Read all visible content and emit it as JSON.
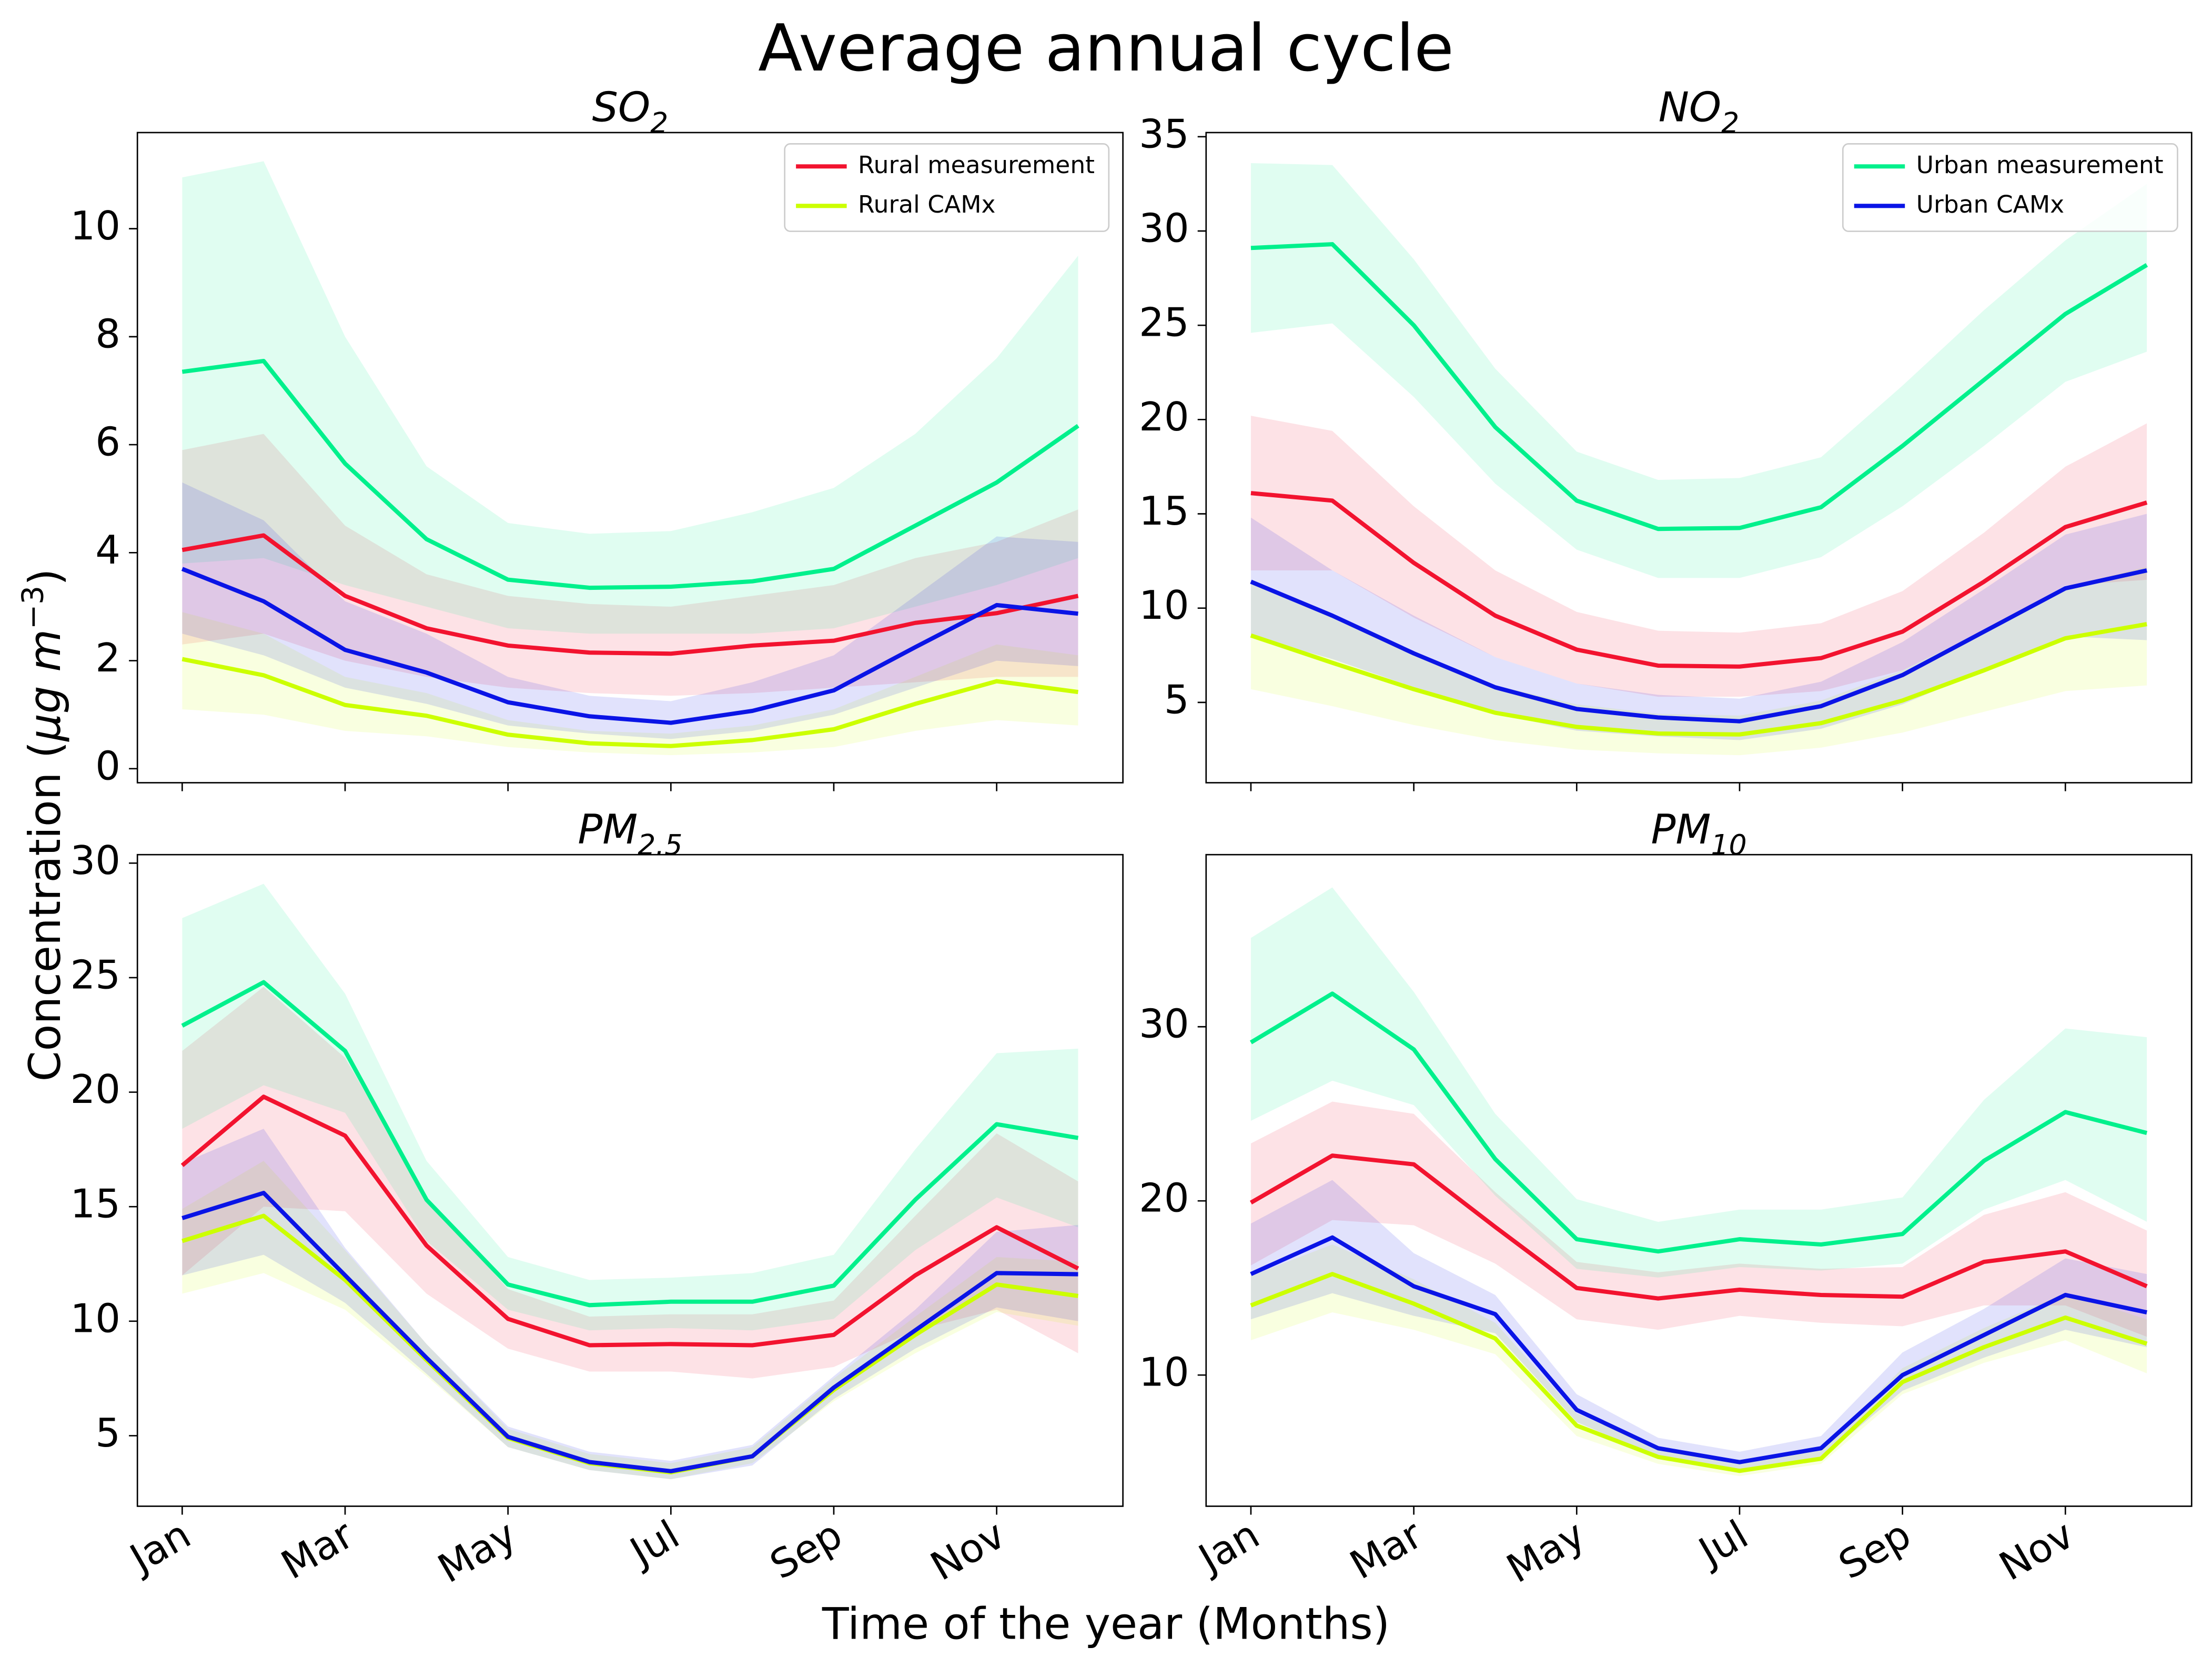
{
  "title": "Average annual cycle",
  "xlabel": "Time of the year (Months)",
  "ylabel": [
    "Concentration (",
    "μg m",
    "−3",
    ")"
  ],
  "categories": [
    "Jan",
    null,
    "Mar",
    null,
    "May",
    null,
    "Jul",
    null,
    "Sep",
    null,
    "Nov",
    null
  ],
  "chart_data": [
    {
      "type": "line",
      "title": [
        "SO",
        "2"
      ],
      "xticklabels": false,
      "legend_loc": "upper right",
      "ylim": [
        -0.26,
        11.78
      ],
      "yticks": [
        0,
        2,
        4,
        6,
        8,
        10
      ],
      "series": [
        {
          "name": "Rural measurement",
          "color": "#f2132f",
          "values": [
            4.05,
            4.32,
            3.2,
            2.6,
            2.28,
            2.15,
            2.13,
            2.28,
            2.37,
            2.7,
            2.88,
            3.2
          ],
          "upper": [
            5.9,
            6.2,
            4.5,
            3.6,
            3.2,
            3.05,
            3.0,
            3.2,
            3.4,
            3.9,
            4.2,
            4.8
          ],
          "lower": [
            2.3,
            2.5,
            2.0,
            1.7,
            1.5,
            1.4,
            1.35,
            1.4,
            1.5,
            1.6,
            1.7,
            1.7
          ]
        },
        {
          "name": "Rural CAMx",
          "color": "#ccff00",
          "values": [
            2.03,
            1.73,
            1.18,
            0.98,
            0.63,
            0.47,
            0.42,
            0.53,
            0.73,
            1.2,
            1.62,
            1.42
          ],
          "upper": [
            2.9,
            2.5,
            1.7,
            1.4,
            0.9,
            0.7,
            0.65,
            0.8,
            1.1,
            1.7,
            2.3,
            2.1
          ],
          "lower": [
            1.1,
            1.0,
            0.7,
            0.6,
            0.4,
            0.3,
            0.25,
            0.3,
            0.4,
            0.7,
            0.9,
            0.8
          ]
        },
        {
          "color": "#00f08c",
          "values": [
            7.35,
            7.55,
            5.65,
            4.25,
            3.5,
            3.35,
            3.37,
            3.47,
            3.7,
            4.5,
            5.3,
            6.35
          ],
          "upper": [
            10.95,
            11.25,
            8.0,
            5.6,
            4.55,
            4.35,
            4.4,
            4.75,
            5.2,
            6.2,
            7.6,
            9.5
          ],
          "lower": [
            3.8,
            3.9,
            3.4,
            3.0,
            2.6,
            2.5,
            2.5,
            2.5,
            2.6,
            3.0,
            3.4,
            3.9
          ]
        },
        {
          "color": "#0a14e6",
          "values": [
            3.7,
            3.1,
            2.2,
            1.78,
            1.23,
            0.97,
            0.85,
            1.07,
            1.45,
            2.25,
            3.03,
            2.87
          ],
          "upper": [
            5.3,
            4.6,
            3.1,
            2.5,
            1.7,
            1.35,
            1.25,
            1.6,
            2.1,
            3.2,
            4.3,
            4.2
          ],
          "lower": [
            2.5,
            2.1,
            1.5,
            1.2,
            0.8,
            0.65,
            0.55,
            0.7,
            1.0,
            1.5,
            2.0,
            1.9
          ]
        }
      ]
    },
    {
      "type": "line",
      "title": [
        "NO",
        "2"
      ],
      "xticklabels": false,
      "legend_loc": "upper right",
      "ylim": [
        0.74,
        35.22
      ],
      "yticks": [
        5,
        10,
        15,
        20,
        25,
        30,
        35
      ],
      "series": [
        {
          "color": "#f2132f",
          "values": [
            16.1,
            15.7,
            12.4,
            9.6,
            7.8,
            6.95,
            6.9,
            7.35,
            8.75,
            11.4,
            14.3,
            15.6
          ],
          "upper": [
            20.2,
            19.4,
            15.4,
            12.0,
            9.8,
            8.8,
            8.7,
            9.2,
            10.9,
            14.0,
            17.5,
            19.8
          ],
          "lower": [
            12.0,
            12.0,
            9.5,
            7.4,
            6.0,
            5.3,
            5.3,
            5.6,
            6.7,
            8.8,
            11.2,
            11.5
          ]
        },
        {
          "color": "#ccff00",
          "values": [
            8.55,
            7.1,
            5.7,
            4.45,
            3.7,
            3.35,
            3.3,
            3.9,
            5.1,
            6.7,
            8.4,
            9.15
          ],
          "upper": [
            11.4,
            9.5,
            7.6,
            5.9,
            4.9,
            4.4,
            4.3,
            5.1,
            6.7,
            8.8,
            11.1,
            12.2
          ],
          "lower": [
            5.7,
            4.8,
            3.8,
            3.0,
            2.5,
            2.3,
            2.2,
            2.6,
            3.4,
            4.5,
            5.6,
            5.9
          ]
        },
        {
          "name": "Urban measurement",
          "color": "#00f08c",
          "values": [
            29.1,
            29.3,
            25.0,
            19.6,
            15.7,
            14.2,
            14.25,
            15.35,
            18.6,
            22.1,
            25.6,
            28.2
          ],
          "upper": [
            33.6,
            33.5,
            28.5,
            22.7,
            18.3,
            16.8,
            16.9,
            18.0,
            21.8,
            25.8,
            29.5,
            32.5
          ],
          "lower": [
            24.6,
            25.1,
            21.2,
            16.6,
            13.1,
            11.6,
            11.6,
            12.7,
            15.4,
            18.6,
            22.0,
            23.6
          ]
        },
        {
          "name": "Urban CAMx",
          "color": "#0a14e6",
          "values": [
            11.4,
            9.6,
            7.6,
            5.8,
            4.65,
            4.2,
            4.0,
            4.8,
            6.45,
            8.75,
            11.05,
            12.0
          ],
          "upper": [
            14.8,
            12.0,
            9.6,
            7.4,
            6.0,
            5.4,
            5.2,
            6.1,
            8.2,
            11.0,
            13.9,
            15.0
          ],
          "lower": [
            8.5,
            7.3,
            5.8,
            4.4,
            3.5,
            3.2,
            3.0,
            3.6,
            4.9,
            6.7,
            8.5,
            8.3
          ]
        }
      ]
    },
    {
      "type": "line",
      "title": [
        "PM",
        "2.5"
      ],
      "xticklabels": true,
      "ylim": [
        1.92,
        30.37
      ],
      "yticks": [
        5,
        10,
        15,
        20,
        25,
        30
      ],
      "series": [
        {
          "color": "#f2132f",
          "values": [
            16.8,
            19.8,
            18.1,
            13.3,
            10.1,
            8.95,
            9.0,
            8.95,
            9.4,
            12.0,
            14.1,
            12.3
          ],
          "upper": [
            21.8,
            24.6,
            21.5,
            15.4,
            11.4,
            10.2,
            10.3,
            10.3,
            10.9,
            14.6,
            18.2,
            16.1
          ],
          "lower": [
            12.0,
            15.0,
            14.8,
            11.2,
            8.8,
            7.8,
            7.8,
            7.5,
            8.0,
            9.6,
            10.5,
            8.6
          ]
        },
        {
          "color": "#ccff00",
          "values": [
            13.5,
            14.6,
            11.8,
            8.3,
            4.9,
            3.8,
            3.4,
            4.1,
            7.0,
            9.4,
            11.6,
            11.1
          ],
          "upper": [
            14.9,
            17.0,
            13.1,
            9.0,
            5.3,
            4.2,
            3.8,
            4.5,
            7.5,
            10.2,
            12.8,
            12.6
          ],
          "lower": [
            11.2,
            12.1,
            10.5,
            7.6,
            4.5,
            3.5,
            3.1,
            3.8,
            6.5,
            8.6,
            10.4,
            9.8
          ]
        },
        {
          "color": "#00f08c",
          "values": [
            22.9,
            24.8,
            21.8,
            15.3,
            11.6,
            10.7,
            10.85,
            10.85,
            11.55,
            15.3,
            18.6,
            18.0
          ],
          "upper": [
            27.6,
            29.1,
            24.3,
            17.0,
            12.8,
            11.8,
            11.9,
            12.1,
            12.9,
            17.5,
            21.7,
            21.9
          ],
          "lower": [
            18.4,
            20.3,
            19.1,
            13.5,
            10.5,
            9.6,
            9.7,
            9.6,
            10.1,
            13.1,
            15.4,
            14.1
          ]
        },
        {
          "color": "#0a14e6",
          "values": [
            14.5,
            15.6,
            12.0,
            8.4,
            4.95,
            3.85,
            3.45,
            4.1,
            7.1,
            9.6,
            12.1,
            12.05
          ],
          "upper": [
            16.9,
            18.4,
            13.2,
            9.0,
            5.4,
            4.3,
            3.9,
            4.6,
            7.6,
            10.5,
            13.9,
            14.2
          ],
          "lower": [
            12.0,
            12.9,
            10.8,
            7.7,
            4.5,
            3.5,
            3.1,
            3.7,
            6.6,
            8.8,
            10.6,
            10.0
          ]
        }
      ]
    },
    {
      "type": "line",
      "title": [
        "PM",
        "10"
      ],
      "xticklabels": true,
      "ylim": [
        2.47,
        39.88
      ],
      "yticks": [
        10,
        20,
        30
      ],
      "series": [
        {
          "color": "#f2132f",
          "values": [
            19.9,
            22.6,
            22.1,
            18.5,
            15.0,
            14.4,
            14.9,
            14.6,
            14.5,
            16.5,
            17.1,
            15.1
          ],
          "upper": [
            23.3,
            25.7,
            25.0,
            20.5,
            16.5,
            15.9,
            16.4,
            16.1,
            16.2,
            19.2,
            20.5,
            18.3
          ],
          "lower": [
            16.3,
            18.9,
            18.6,
            16.4,
            13.2,
            12.6,
            13.4,
            13.0,
            12.8,
            14.0,
            14.0,
            12.2
          ]
        },
        {
          "color": "#ccff00",
          "values": [
            14.0,
            15.8,
            14.1,
            12.1,
            7.1,
            5.3,
            4.5,
            5.2,
            9.6,
            11.6,
            13.3,
            11.8
          ],
          "upper": [
            15.7,
            17.5,
            15.5,
            13.0,
            7.8,
            5.8,
            5.0,
            5.7,
            10.4,
            12.7,
            14.7,
            13.2
          ],
          "lower": [
            12.0,
            13.6,
            12.6,
            11.2,
            6.5,
            4.9,
            4.2,
            4.9,
            8.9,
            10.7,
            12.0,
            10.1
          ]
        },
        {
          "color": "#00f08c",
          "values": [
            29.1,
            31.9,
            28.7,
            22.4,
            17.8,
            17.1,
            17.8,
            17.5,
            18.1,
            22.3,
            25.1,
            23.9
          ],
          "upper": [
            35.1,
            38.0,
            32.0,
            25.0,
            20.1,
            18.8,
            19.5,
            19.5,
            20.2,
            25.8,
            29.9,
            29.4
          ],
          "lower": [
            24.6,
            26.9,
            25.5,
            20.3,
            16.1,
            15.6,
            16.2,
            16.0,
            16.4,
            19.5,
            21.2,
            18.8
          ]
        },
        {
          "color": "#0a14e6",
          "values": [
            15.8,
            17.9,
            15.1,
            13.5,
            8.0,
            5.8,
            5.0,
            5.8,
            10.0,
            12.3,
            14.6,
            13.6
          ],
          "upper": [
            18.7,
            21.2,
            17.0,
            14.6,
            8.9,
            6.4,
            5.6,
            6.5,
            11.3,
            13.8,
            16.7,
            15.8
          ],
          "lower": [
            13.2,
            14.7,
            13.4,
            12.4,
            7.3,
            5.3,
            4.6,
            5.2,
            9.1,
            11.0,
            12.6,
            11.6
          ]
        }
      ]
    }
  ]
}
